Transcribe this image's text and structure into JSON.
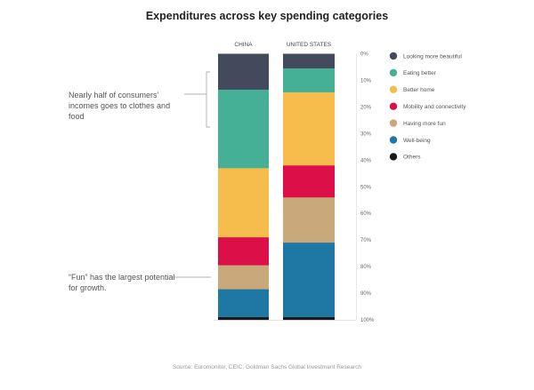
{
  "chart_data": {
    "type": "bar",
    "stacked": true,
    "orientation": "vertical",
    "title": "Expenditures across key spending categories",
    "categories": [
      "CHINA",
      "UNITED STATES"
    ],
    "series": [
      {
        "name": "Looking more beautiful",
        "color": "#434a5c",
        "values": [
          13.5,
          5.5
        ]
      },
      {
        "name": "Eating better",
        "color": "#45b096",
        "values": [
          29.5,
          9
        ]
      },
      {
        "name": "Better home",
        "color": "#f6bd4c",
        "values": [
          26,
          27.5
        ]
      },
      {
        "name": "Mobility and connectivity",
        "color": "#dc0f48",
        "values": [
          10.5,
          12
        ]
      },
      {
        "name": "Having more fun",
        "color": "#c9a87c",
        "values": [
          9,
          17
        ]
      },
      {
        "name": "Well-being",
        "color": "#1f78a4",
        "values": [
          10.5,
          28
        ]
      },
      {
        "name": "Others",
        "color": "#1a1a1a",
        "values": [
          1,
          1
        ]
      }
    ],
    "yaxis": {
      "ticks": [
        "0%",
        "10%",
        "20%",
        "30%",
        "40%",
        "50%",
        "60%",
        "70%",
        "80%",
        "90%",
        "100%"
      ],
      "range": [
        0,
        100
      ],
      "direction": "top-to-bottom",
      "position": "right"
    },
    "legend": "right",
    "grid": false
  },
  "annotations": {
    "half": "Nearly half of consumers' incomes goes to clothes and food",
    "fun": "“Fun” has the largest potential for growth."
  },
  "source": "Source: Euromonitor, CEIC, Goldman Sachs Global Investment Research"
}
